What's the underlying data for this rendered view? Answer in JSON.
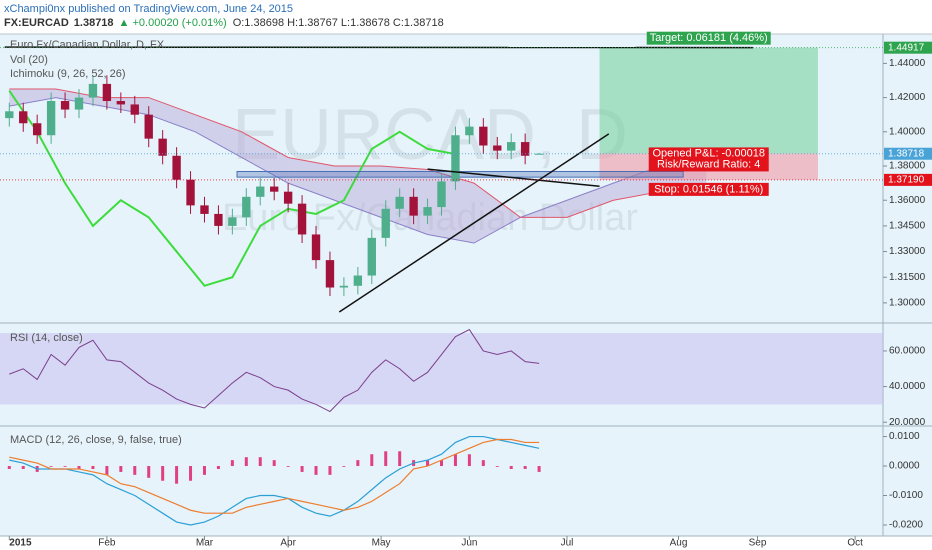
{
  "header": {
    "author_line": "xChampi0nx published on TradingView.com, June 24, 2015",
    "symbol": "FX:EURCAD",
    "last": "1.38718",
    "change": "▲ +0.00020 (+0.01%)",
    "ohlc": "O:1.38698 H:1.38767 L:1.38678 C:1.38718"
  },
  "chart_data": [
    {
      "type": "candlestick",
      "title": "Euro Fx/Canadian Dollar, D, FX",
      "indicators": [
        "Vol (20)",
        "Ichimoku (9, 26, 52, 26)"
      ],
      "watermark": [
        "EURCAD, D",
        "Euro Fx/Canadian Dollar"
      ],
      "up_color": "#4fae8c",
      "down_color": "#a3123a",
      "grid": false,
      "x": [
        0,
        3,
        6,
        9,
        12,
        15,
        18,
        21,
        24,
        27,
        30,
        33,
        36,
        39,
        42,
        45,
        48,
        51,
        54,
        57,
        60,
        63,
        66,
        69,
        72,
        75,
        78,
        81,
        84,
        87,
        90,
        93,
        96,
        99,
        102,
        105,
        108,
        111,
        114
      ],
      "open": [
        1.408,
        1.412,
        1.405,
        1.398,
        1.418,
        1.413,
        1.42,
        1.428,
        1.418,
        1.416,
        1.41,
        1.396,
        1.386,
        1.372,
        1.357,
        1.352,
        1.345,
        1.35,
        1.362,
        1.368,
        1.365,
        1.358,
        1.34,
        1.325,
        1.309,
        1.31,
        1.316,
        1.338,
        1.355,
        1.362,
        1.351,
        1.356,
        1.371,
        1.398,
        1.403,
        1.392,
        1.389,
        1.394,
        1.38698
      ],
      "high": [
        1.417,
        1.417,
        1.41,
        1.423,
        1.423,
        1.425,
        1.433,
        1.433,
        1.423,
        1.421,
        1.415,
        1.401,
        1.391,
        1.377,
        1.362,
        1.357,
        1.355,
        1.367,
        1.373,
        1.373,
        1.37,
        1.363,
        1.345,
        1.33,
        1.315,
        1.321,
        1.343,
        1.36,
        1.367,
        1.367,
        1.361,
        1.376,
        1.403,
        1.408,
        1.408,
        1.397,
        1.399,
        1.399,
        1.38767
      ],
      "low": [
        1.403,
        1.4,
        1.393,
        1.393,
        1.408,
        1.408,
        1.415,
        1.413,
        1.411,
        1.405,
        1.391,
        1.381,
        1.367,
        1.352,
        1.347,
        1.34,
        1.34,
        1.345,
        1.357,
        1.36,
        1.353,
        1.335,
        1.32,
        1.304,
        1.304,
        1.305,
        1.311,
        1.333,
        1.35,
        1.346,
        1.346,
        1.351,
        1.366,
        1.393,
        1.387,
        1.384,
        1.384,
        1.381,
        1.38678
      ],
      "close": [
        1.412,
        1.405,
        1.398,
        1.418,
        1.413,
        1.42,
        1.428,
        1.418,
        1.416,
        1.41,
        1.396,
        1.386,
        1.372,
        1.357,
        1.352,
        1.345,
        1.35,
        1.362,
        1.368,
        1.365,
        1.358,
        1.34,
        1.325,
        1.309,
        1.31,
        1.316,
        1.338,
        1.355,
        1.362,
        1.351,
        1.356,
        1.371,
        1.398,
        1.403,
        1.392,
        1.389,
        1.394,
        1.386,
        1.38718
      ],
      "ichimoku": {
        "cloud_color": "#b9a7d6",
        "lagging": {
          "color": "#3ddc3d",
          "x": [
            0,
            6,
            12,
            18,
            24,
            30,
            36,
            42,
            48,
            54,
            60,
            66,
            72,
            78,
            84,
            90,
            96
          ],
          "values": [
            1.424,
            1.4,
            1.37,
            1.345,
            1.36,
            1.35,
            1.33,
            1.31,
            1.315,
            1.345,
            1.355,
            1.352,
            1.36,
            1.39,
            1.4,
            1.39,
            1.387
          ]
        },
        "span_a": {
          "color": "#8a80c8",
          "x": [
            0,
            10,
            20,
            30,
            40,
            50,
            60,
            70,
            80,
            90,
            100,
            110,
            120,
            130,
            140,
            150
          ],
          "values": [
            1.415,
            1.42,
            1.415,
            1.41,
            1.4,
            1.385,
            1.37,
            1.36,
            1.35,
            1.34,
            1.335,
            1.35,
            1.36,
            1.37,
            1.38,
            1.385
          ]
        },
        "span_b": {
          "color": "#e0566a",
          "x": [
            0,
            10,
            20,
            30,
            40,
            50,
            60,
            70,
            80,
            90,
            100,
            110,
            120,
            130,
            140,
            150
          ],
          "values": [
            1.425,
            1.425,
            1.42,
            1.42,
            1.41,
            1.4,
            1.385,
            1.38,
            1.38,
            1.378,
            1.37,
            1.35,
            1.35,
            1.36,
            1.365,
            1.365
          ]
        }
      },
      "trendlines": [
        {
          "x": [
            -1,
            160
          ],
          "y": [
            1.4495,
            1.4492
          ],
          "color": "#111111"
        },
        {
          "x": [
            71,
            129
          ],
          "y": [
            1.2947,
            1.3988
          ],
          "color": "#111111"
        },
        {
          "x": [
            90,
            127
          ],
          "y": [
            1.3782,
            1.3682
          ],
          "color": "#111111"
        }
      ],
      "channel": {
        "x": [
          49,
          145
        ],
        "y": [
          1.3735,
          1.3768
        ],
        "color": "#4a6fb5"
      },
      "position": {
        "x": [
          127,
          174
        ],
        "entry": 1.38736,
        "target": 1.44917,
        "stop": 1.3719,
        "target_label": "Target: 0.06181 (4.46%)",
        "pnl_label": "Opened P&L: -0.00018",
        "ratio_label": "Risk/Reward Ratio: 4",
        "stop_label": "Stop: 0.01546 (1.11%)"
      },
      "price_tags": [
        {
          "value": 1.44917,
          "label": "1.44917",
          "color": "#2ea44f"
        },
        {
          "value": 1.38718,
          "label": "1.38718",
          "color": "#4aa3d6"
        },
        {
          "value": 1.3719,
          "label": "1.37190",
          "color": "#e3131c"
        }
      ],
      "xlim": [
        -2,
        188
      ],
      "xticks": [
        {
          "value": 0,
          "label": "2015"
        },
        {
          "value": 21,
          "label": "Feb"
        },
        {
          "value": 42,
          "label": "Mar"
        },
        {
          "value": 60,
          "label": "Apr"
        },
        {
          "value": 80,
          "label": "May"
        },
        {
          "value": 99,
          "label": "Jun"
        },
        {
          "value": 120,
          "label": "Jul"
        },
        {
          "value": 144,
          "label": "Aug"
        },
        {
          "value": 161,
          "label": "Sep"
        },
        {
          "value": 182,
          "label": "Oct"
        }
      ],
      "ylim": [
        1.29,
        1.456
      ],
      "yticks": [
        {
          "value": 1.44,
          "label": "1.44000"
        },
        {
          "value": 1.42,
          "label": "1.42000"
        },
        {
          "value": 1.4,
          "label": "1.40000"
        },
        {
          "value": 1.38,
          "label": "1.38000"
        },
        {
          "value": 1.36,
          "label": "1.36000"
        },
        {
          "value": 1.345,
          "label": "1.34500"
        },
        {
          "value": 1.33,
          "label": "1.33000"
        },
        {
          "value": 1.315,
          "label": "1.31500"
        },
        {
          "value": 1.3,
          "label": "1.30000"
        }
      ]
    },
    {
      "type": "rsi",
      "title": "RSI (14, close)",
      "color": "#7b3f8c",
      "band": [
        30,
        70
      ],
      "band_color": "#c7bff0",
      "x": [
        0,
        3,
        6,
        9,
        12,
        15,
        18,
        21,
        24,
        27,
        30,
        33,
        36,
        39,
        42,
        45,
        48,
        51,
        54,
        57,
        60,
        63,
        66,
        69,
        72,
        75,
        78,
        81,
        84,
        87,
        90,
        93,
        96,
        99,
        102,
        105,
        108,
        111,
        114
      ],
      "values": [
        47,
        50,
        44,
        58,
        52,
        62,
        66,
        55,
        54,
        48,
        42,
        38,
        33,
        30,
        28,
        35,
        42,
        48,
        45,
        40,
        38,
        33,
        30,
        26,
        34,
        38,
        48,
        55,
        50,
        43,
        48,
        58,
        68,
        72,
        60,
        58,
        60,
        54,
        53
      ],
      "ylim": [
        19,
        74
      ],
      "yticks": [
        {
          "value": 60,
          "label": "60.0000"
        },
        {
          "value": 40,
          "label": "40.0000"
        },
        {
          "value": 20,
          "label": "20.0000"
        }
      ]
    },
    {
      "type": "macd",
      "title": "MACD (12, 26, close, 9, false, true)",
      "macd_color": "#2c9fd6",
      "signal_color": "#ee7d2e",
      "histogram_color": "#e0407f",
      "x": [
        0,
        3,
        6,
        9,
        12,
        15,
        18,
        21,
        24,
        27,
        30,
        33,
        36,
        39,
        42,
        45,
        48,
        51,
        54,
        57,
        60,
        63,
        66,
        69,
        72,
        75,
        78,
        81,
        84,
        87,
        90,
        93,
        96,
        99,
        102,
        105,
        108,
        111,
        114
      ],
      "macd": [
        0.002,
        0.001,
        -0.001,
        -0.001,
        -0.001,
        -0.002,
        -0.003,
        -0.006,
        -0.008,
        -0.01,
        -0.013,
        -0.016,
        -0.019,
        -0.02,
        -0.019,
        -0.017,
        -0.014,
        -0.011,
        -0.01,
        -0.01,
        -0.011,
        -0.014,
        -0.016,
        -0.017,
        -0.015,
        -0.012,
        -0.008,
        -0.004,
        -0.001,
        0.001,
        0.002,
        0.004,
        0.008,
        0.01,
        0.01,
        0.009,
        0.008,
        0.007,
        0.006
      ],
      "signal": [
        0.003,
        0.002,
        0.001,
        -0.001,
        -0.001,
        -0.001,
        -0.002,
        -0.003,
        -0.006,
        -0.007,
        -0.009,
        -0.011,
        -0.013,
        -0.015,
        -0.016,
        -0.016,
        -0.016,
        -0.014,
        -0.013,
        -0.012,
        -0.011,
        -0.012,
        -0.013,
        -0.014,
        -0.015,
        -0.014,
        -0.012,
        -0.009,
        -0.006,
        -0.001,
        0.0,
        0.002,
        0.004,
        0.006,
        0.008,
        0.009,
        0.009,
        0.008,
        0.008
      ],
      "histogram": [
        -0.001,
        -0.001,
        -0.002,
        0,
        0,
        -0.001,
        -0.001,
        -0.003,
        -0.002,
        -0.003,
        -0.004,
        -0.005,
        -0.006,
        -0.005,
        -0.003,
        -0.001,
        0.002,
        0.003,
        0.003,
        0.002,
        0,
        -0.002,
        -0.003,
        -0.003,
        0,
        0.002,
        0.004,
        0.005,
        0.005,
        0.002,
        0.002,
        0.002,
        0.004,
        0.004,
        0.002,
        0,
        -0.001,
        -0.001,
        -0.002
      ],
      "ylim": [
        -0.0234,
        0.0129
      ],
      "yticks": [
        {
          "value": 0.01,
          "label": "0.0100"
        },
        {
          "value": 0,
          "label": "0.0000"
        },
        {
          "value": -0.01,
          "label": "-0.0100"
        },
        {
          "value": -0.02,
          "label": "-0.0200"
        }
      ]
    }
  ]
}
